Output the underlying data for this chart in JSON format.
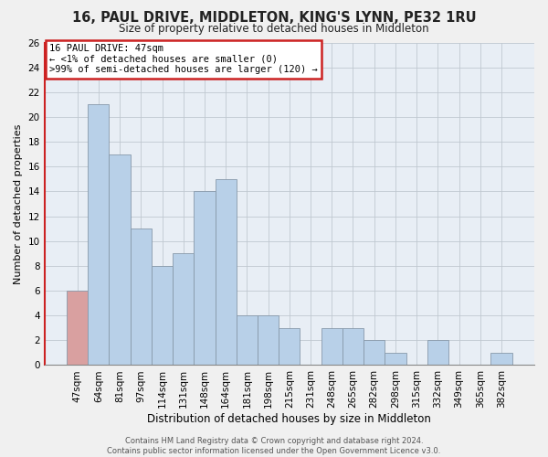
{
  "title": "16, PAUL DRIVE, MIDDLETON, KING'S LYNN, PE32 1RU",
  "subtitle": "Size of property relative to detached houses in Middleton",
  "xlabel": "Distribution of detached houses by size in Middleton",
  "ylabel": "Number of detached properties",
  "bar_labels": [
    "47sqm",
    "64sqm",
    "81sqm",
    "97sqm",
    "114sqm",
    "131sqm",
    "148sqm",
    "164sqm",
    "181sqm",
    "198sqm",
    "215sqm",
    "231sqm",
    "248sqm",
    "265sqm",
    "282sqm",
    "298sqm",
    "315sqm",
    "332sqm",
    "349sqm",
    "365sqm",
    "382sqm"
  ],
  "bar_values": [
    6,
    21,
    17,
    11,
    8,
    9,
    14,
    15,
    4,
    4,
    3,
    0,
    3,
    3,
    2,
    1,
    0,
    2,
    0,
    0,
    1
  ],
  "highlight_index": 0,
  "highlight_color": "#d9a0a0",
  "normal_color": "#b8d0e8",
  "ylim": [
    0,
    26
  ],
  "yticks": [
    0,
    2,
    4,
    6,
    8,
    10,
    12,
    14,
    16,
    18,
    20,
    22,
    24,
    26
  ],
  "annotation_box_text": [
    "16 PAUL DRIVE: 47sqm",
    "← <1% of detached houses are smaller (0)",
    ">99% of semi-detached houses are larger (120) →"
  ],
  "footer_line1": "Contains HM Land Registry data © Crown copyright and database right 2024.",
  "footer_line2": "Contains public sector information licensed under the Open Government Licence v3.0.",
  "bg_color": "#f0f0f0",
  "plot_bg_color": "#e8eef5",
  "grid_color": "#c0c8d0",
  "annotation_box_facecolor": "#ffffff",
  "annotation_box_edgecolor": "#cc2222",
  "title_fontsize": 10.5,
  "subtitle_fontsize": 8.5,
  "xlabel_fontsize": 8.5,
  "ylabel_fontsize": 8,
  "tick_fontsize": 7.5,
  "ann_fontsize": 7.5,
  "footer_fontsize": 6
}
